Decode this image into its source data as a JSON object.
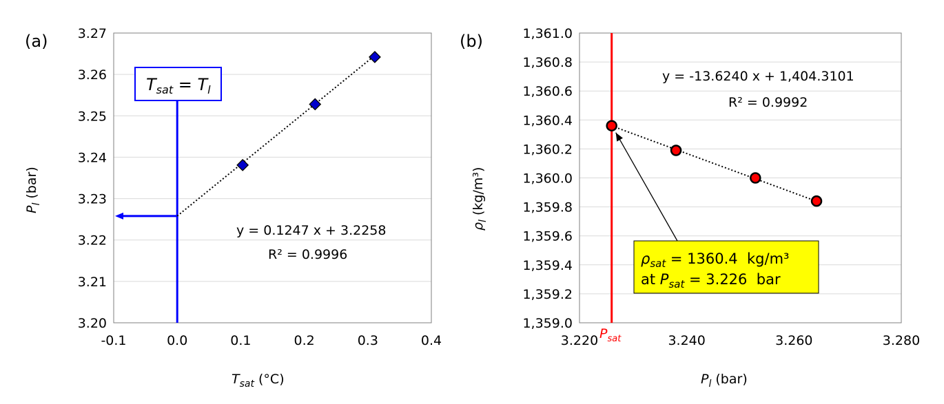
{
  "chart_data": [
    {
      "type": "scatter",
      "panel_label": "(a)",
      "xlabel": {
        "main": "T",
        "sub": "sat",
        "unit": " (°C)"
      },
      "ylabel": {
        "main": "P",
        "sub": "l",
        "unit": " (bar)"
      },
      "xlim": [
        -0.1,
        0.4
      ],
      "ylim": [
        3.2,
        3.27
      ],
      "xticks": [
        -0.1,
        0.0,
        0.1,
        0.2,
        0.3,
        0.4
      ],
      "xtick_labels": [
        "-0.1",
        "0.0",
        "0.1",
        "0.2",
        "0.3",
        "0.4"
      ],
      "yticks": [
        3.2,
        3.21,
        3.22,
        3.23,
        3.24,
        3.25,
        3.26,
        3.27
      ],
      "ytick_labels": [
        "3.20",
        "3.21",
        "3.22",
        "3.23",
        "3.24",
        "3.25",
        "3.26",
        "3.27"
      ],
      "grid": "horizontal",
      "series": [
        {
          "points": [
            [
              0.103,
              3.2381
            ],
            [
              0.217,
              3.2528
            ],
            [
              0.311,
              3.2642
            ]
          ],
          "marker": "diamond",
          "color": "#0000cc"
        }
      ],
      "trendline": {
        "slope": 0.1247,
        "intercept": 3.2258,
        "x_range": [
          0.0,
          0.311
        ],
        "style": "dotted"
      },
      "equation": "y = 0.1247 x + 3.2258",
      "r2": "R² = 0.9996",
      "annotation": {
        "left": "T",
        "left_sub": "sat",
        "mid": " = ",
        "right": "T",
        "right_sub": "l"
      },
      "guide": {
        "color": "#0000ff",
        "x": 0.0,
        "y": 3.2258
      }
    },
    {
      "type": "scatter",
      "panel_label": "(b)",
      "xlabel": {
        "main": "P",
        "sub": "l",
        "unit": " (bar)"
      },
      "ylabel": {
        "main": "ρ",
        "sub": "l",
        "unit": " (kg/m³)"
      },
      "xlim": [
        3.22,
        3.28
      ],
      "ylim": [
        1359.0,
        1361.0
      ],
      "xticks": [
        3.22,
        3.24,
        3.26,
        3.28
      ],
      "xtick_labels": [
        "3.220",
        "3.240",
        "3.260",
        "3.280"
      ],
      "yticks": [
        1359.0,
        1359.2,
        1359.4,
        1359.6,
        1359.8,
        1360.0,
        1360.2,
        1360.4,
        1360.6,
        1360.8,
        1361.0
      ],
      "ytick_labels": [
        "1,359.0",
        "1,359.2",
        "1,359.4",
        "1,359.6",
        "1,359.8",
        "1,360.0",
        "1,360.2",
        "1,360.4",
        "1,360.6",
        "1,360.8",
        "1,361.0"
      ],
      "grid": "horizontal",
      "series": [
        {
          "points": [
            [
              3.226,
              1360.36
            ],
            [
              3.238,
              1360.19
            ],
            [
              3.2528,
              1360.0
            ],
            [
              3.2642,
              1359.84
            ]
          ],
          "marker": "circle",
          "color": "#ff0000"
        }
      ],
      "trendline": {
        "slope": -13.624,
        "intercept": 1404.3101,
        "x_range": [
          3.226,
          3.2642
        ],
        "style": "dotted"
      },
      "equation": "y = -13.6240 x + 1,404.3101",
      "r2": "R² = 0.9992",
      "vline": {
        "x": 3.226,
        "color": "#ff0000",
        "label_main": "P",
        "label_sub": "sat"
      },
      "callout": {
        "line1_main": "ρ",
        "line1_sub": "sat",
        "line1_rest": " = 1360.4  kg/m³",
        "line2_pre": "at ",
        "line2_main": "P",
        "line2_sub": "sat",
        "line2_rest": " = 3.226  bar",
        "bg": "#ffff00",
        "arrow_to": [
          3.226,
          1360.36
        ]
      }
    }
  ]
}
